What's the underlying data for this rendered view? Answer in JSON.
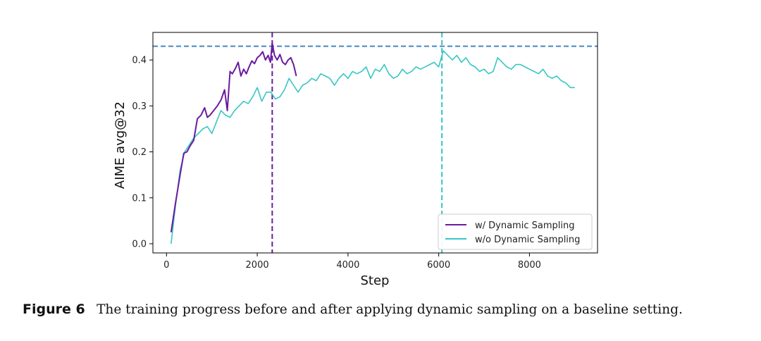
{
  "chart_data": {
    "type": "line",
    "title": "",
    "xlabel": "Step",
    "ylabel": "AIME avg@32",
    "xlim": [
      -300,
      9500
    ],
    "ylim": [
      -0.02,
      0.46
    ],
    "xticks": [
      0,
      2000,
      4000,
      6000,
      8000
    ],
    "xtick_labels": [
      "0",
      "2000",
      "4000",
      "6000",
      "8000"
    ],
    "yticks": [
      0.0,
      0.1,
      0.2,
      0.3,
      0.4
    ],
    "ytick_labels": [
      "0.0",
      "0.1",
      "0.2",
      "0.3",
      "0.4"
    ],
    "grid": false,
    "legend_position": "lower-right",
    "reference_lines": [
      {
        "orientation": "horizontal",
        "value": 0.43,
        "color": "#4a86c0"
      },
      {
        "orientation": "vertical",
        "value": 2330,
        "color": "#6a1ba0"
      },
      {
        "orientation": "vertical",
        "value": 6070,
        "color": "#37c6c4"
      }
    ],
    "series": [
      {
        "name": "w/ Dynamic Sampling",
        "color": "#6a1ba0",
        "x": [
          100,
          200,
          300,
          380,
          450,
          520,
          600,
          680,
          760,
          840,
          900,
          960,
          1040,
          1120,
          1200,
          1280,
          1340,
          1400,
          1450,
          1520,
          1580,
          1640,
          1700,
          1760,
          1820,
          1880,
          1940,
          2000,
          2060,
          2120,
          2180,
          2240,
          2290,
          2330,
          2380,
          2440,
          2500,
          2560,
          2620,
          2680,
          2740,
          2800,
          2860
        ],
        "y": [
          0.025,
          0.09,
          0.15,
          0.197,
          0.2,
          0.213,
          0.225,
          0.272,
          0.28,
          0.296,
          0.275,
          0.28,
          0.29,
          0.3,
          0.313,
          0.335,
          0.29,
          0.375,
          0.37,
          0.382,
          0.395,
          0.365,
          0.38,
          0.37,
          0.385,
          0.398,
          0.392,
          0.405,
          0.41,
          0.418,
          0.4,
          0.41,
          0.395,
          0.437,
          0.41,
          0.4,
          0.412,
          0.395,
          0.39,
          0.4,
          0.405,
          0.39,
          0.365
        ]
      },
      {
        "name": "w/o Dynamic Sampling",
        "color": "#37c6c4",
        "x": [
          100,
          200,
          300,
          400,
          500,
          600,
          700,
          800,
          900,
          1000,
          1100,
          1200,
          1300,
          1400,
          1500,
          1600,
          1700,
          1800,
          1900,
          2000,
          2100,
          2200,
          2300,
          2400,
          2500,
          2600,
          2700,
          2800,
          2900,
          3000,
          3100,
          3200,
          3300,
          3400,
          3500,
          3600,
          3700,
          3800,
          3900,
          4000,
          4100,
          4200,
          4300,
          4400,
          4500,
          4600,
          4700,
          4800,
          4900,
          5000,
          5100,
          5200,
          5300,
          5400,
          5500,
          5600,
          5700,
          5800,
          5900,
          6000,
          6100,
          6200,
          6300,
          6400,
          6500,
          6600,
          6700,
          6800,
          6900,
          7000,
          7100,
          7200,
          7300,
          7400,
          7500,
          7600,
          7700,
          7800,
          7900,
          8000,
          8100,
          8200,
          8300,
          8400,
          8500,
          8600,
          8700,
          8800,
          8900,
          9000
        ],
        "y": [
          0.0,
          0.085,
          0.16,
          0.2,
          0.215,
          0.23,
          0.24,
          0.25,
          0.255,
          0.24,
          0.265,
          0.29,
          0.28,
          0.275,
          0.29,
          0.3,
          0.31,
          0.305,
          0.32,
          0.34,
          0.31,
          0.33,
          0.33,
          0.315,
          0.32,
          0.335,
          0.36,
          0.345,
          0.33,
          0.345,
          0.35,
          0.36,
          0.355,
          0.37,
          0.365,
          0.36,
          0.345,
          0.36,
          0.37,
          0.36,
          0.375,
          0.37,
          0.375,
          0.385,
          0.36,
          0.38,
          0.375,
          0.39,
          0.37,
          0.36,
          0.365,
          0.38,
          0.37,
          0.375,
          0.385,
          0.38,
          0.385,
          0.39,
          0.395,
          0.385,
          0.42,
          0.41,
          0.4,
          0.41,
          0.395,
          0.405,
          0.39,
          0.385,
          0.375,
          0.38,
          0.37,
          0.375,
          0.405,
          0.395,
          0.385,
          0.38,
          0.39,
          0.39,
          0.385,
          0.38,
          0.375,
          0.37,
          0.38,
          0.365,
          0.36,
          0.365,
          0.355,
          0.35,
          0.34,
          0.34
        ]
      }
    ]
  },
  "caption": {
    "label": "Figure 6",
    "text": "The training progress before and after applying dynamic sampling on a baseline setting."
  }
}
